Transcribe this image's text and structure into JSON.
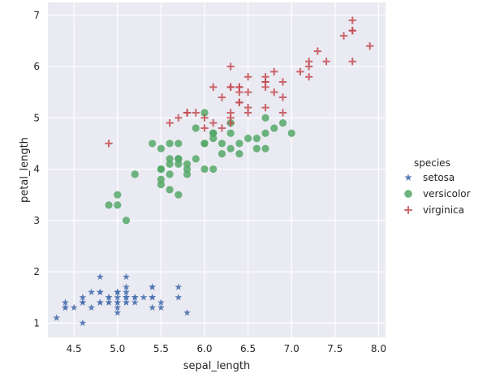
{
  "chart_data": {
    "type": "scatter",
    "xlabel": "sepal_length",
    "ylabel": "petal_length",
    "xlim": [
      4.2,
      8.08
    ],
    "ylim": [
      0.72,
      7.25
    ],
    "xticks": [
      4.5,
      5.0,
      5.5,
      6.0,
      6.5,
      7.0,
      7.5,
      8.0
    ],
    "yticks": [
      1,
      2,
      3,
      4,
      5,
      6,
      7
    ],
    "grid": true,
    "legend": {
      "title": "species",
      "placement": "right"
    },
    "series": [
      {
        "name": "setosa",
        "marker": "star",
        "color": "#4c72b0",
        "points": [
          [
            5.1,
            1.4
          ],
          [
            4.9,
            1.4
          ],
          [
            4.7,
            1.3
          ],
          [
            4.6,
            1.5
          ],
          [
            5.0,
            1.4
          ],
          [
            5.4,
            1.7
          ],
          [
            4.6,
            1.4
          ],
          [
            5.0,
            1.5
          ],
          [
            4.4,
            1.4
          ],
          [
            4.9,
            1.5
          ],
          [
            5.4,
            1.5
          ],
          [
            4.8,
            1.6
          ],
          [
            4.8,
            1.4
          ],
          [
            4.3,
            1.1
          ],
          [
            5.8,
            1.2
          ],
          [
            5.7,
            1.5
          ],
          [
            5.4,
            1.3
          ],
          [
            5.1,
            1.4
          ],
          [
            5.7,
            1.7
          ],
          [
            5.1,
            1.5
          ],
          [
            5.4,
            1.7
          ],
          [
            5.1,
            1.5
          ],
          [
            4.6,
            1.0
          ],
          [
            5.1,
            1.7
          ],
          [
            4.8,
            1.9
          ],
          [
            5.0,
            1.6
          ],
          [
            5.0,
            1.6
          ],
          [
            5.2,
            1.5
          ],
          [
            5.2,
            1.4
          ],
          [
            4.7,
            1.6
          ],
          [
            4.8,
            1.6
          ],
          [
            5.4,
            1.5
          ],
          [
            5.2,
            1.5
          ],
          [
            5.5,
            1.4
          ],
          [
            4.9,
            1.5
          ],
          [
            5.0,
            1.2
          ],
          [
            5.5,
            1.3
          ],
          [
            4.9,
            1.4
          ],
          [
            4.4,
            1.3
          ],
          [
            5.1,
            1.5
          ],
          [
            5.0,
            1.3
          ],
          [
            4.5,
            1.3
          ],
          [
            4.4,
            1.3
          ],
          [
            5.0,
            1.6
          ],
          [
            5.1,
            1.9
          ],
          [
            4.8,
            1.4
          ],
          [
            5.1,
            1.6
          ],
          [
            4.6,
            1.4
          ],
          [
            5.3,
            1.5
          ],
          [
            5.0,
            1.4
          ]
        ]
      },
      {
        "name": "versicolor",
        "marker": "circle",
        "color": "#55a868",
        "points": [
          [
            7.0,
            4.7
          ],
          [
            6.4,
            4.5
          ],
          [
            6.9,
            4.9
          ],
          [
            5.5,
            4.0
          ],
          [
            6.5,
            4.6
          ],
          [
            5.7,
            4.5
          ],
          [
            6.3,
            4.7
          ],
          [
            4.9,
            3.3
          ],
          [
            6.6,
            4.6
          ],
          [
            5.2,
            3.9
          ],
          [
            5.0,
            3.5
          ],
          [
            5.9,
            4.2
          ],
          [
            6.0,
            4.0
          ],
          [
            6.1,
            4.7
          ],
          [
            5.6,
            3.6
          ],
          [
            6.7,
            4.4
          ],
          [
            5.6,
            4.5
          ],
          [
            5.8,
            4.1
          ],
          [
            6.2,
            4.5
          ],
          [
            5.6,
            3.9
          ],
          [
            5.9,
            4.8
          ],
          [
            6.1,
            4.0
          ],
          [
            6.3,
            4.9
          ],
          [
            6.1,
            4.7
          ],
          [
            6.4,
            4.3
          ],
          [
            6.6,
            4.4
          ],
          [
            6.8,
            4.8
          ],
          [
            6.7,
            5.0
          ],
          [
            6.0,
            4.5
          ],
          [
            5.7,
            3.5
          ],
          [
            5.5,
            3.8
          ],
          [
            5.5,
            3.7
          ],
          [
            5.8,
            3.9
          ],
          [
            6.0,
            5.1
          ],
          [
            5.4,
            4.5
          ],
          [
            6.0,
            4.5
          ],
          [
            6.7,
            4.7
          ],
          [
            6.3,
            4.4
          ],
          [
            5.6,
            4.1
          ],
          [
            5.5,
            4.0
          ],
          [
            5.5,
            4.4
          ],
          [
            6.1,
            4.6
          ],
          [
            5.8,
            4.0
          ],
          [
            5.0,
            3.3
          ],
          [
            5.6,
            4.2
          ],
          [
            5.7,
            4.2
          ],
          [
            5.7,
            4.2
          ],
          [
            6.2,
            4.3
          ],
          [
            5.1,
            3.0
          ],
          [
            5.7,
            4.1
          ]
        ]
      },
      {
        "name": "virginica",
        "marker": "plus",
        "color": "#c44e52",
        "points": [
          [
            6.3,
            6.0
          ],
          [
            5.8,
            5.1
          ],
          [
            7.1,
            5.9
          ],
          [
            6.3,
            5.6
          ],
          [
            6.5,
            5.8
          ],
          [
            7.6,
            6.6
          ],
          [
            4.9,
            4.5
          ],
          [
            7.3,
            6.3
          ],
          [
            6.7,
            5.8
          ],
          [
            7.2,
            6.1
          ],
          [
            6.5,
            5.1
          ],
          [
            6.4,
            5.3
          ],
          [
            6.8,
            5.5
          ],
          [
            5.7,
            5.0
          ],
          [
            5.8,
            5.1
          ],
          [
            6.4,
            5.3
          ],
          [
            6.5,
            5.5
          ],
          [
            7.7,
            6.7
          ],
          [
            7.7,
            6.9
          ],
          [
            6.0,
            5.0
          ],
          [
            6.9,
            5.7
          ],
          [
            5.6,
            4.9
          ],
          [
            7.7,
            6.7
          ],
          [
            6.3,
            4.9
          ],
          [
            6.7,
            5.7
          ],
          [
            7.2,
            6.0
          ],
          [
            6.2,
            4.8
          ],
          [
            6.1,
            4.9
          ],
          [
            6.4,
            5.6
          ],
          [
            7.2,
            5.8
          ],
          [
            7.4,
            6.1
          ],
          [
            7.9,
            6.4
          ],
          [
            6.4,
            5.6
          ],
          [
            6.3,
            5.1
          ],
          [
            6.1,
            5.6
          ],
          [
            7.7,
            6.1
          ],
          [
            6.3,
            5.6
          ],
          [
            6.4,
            5.5
          ],
          [
            6.0,
            4.8
          ],
          [
            6.9,
            5.4
          ],
          [
            6.7,
            5.6
          ],
          [
            6.9,
            5.1
          ],
          [
            5.8,
            5.1
          ],
          [
            6.8,
            5.9
          ],
          [
            6.7,
            5.7
          ],
          [
            6.7,
            5.2
          ],
          [
            6.3,
            5.0
          ],
          [
            6.5,
            5.2
          ],
          [
            6.2,
            5.4
          ],
          [
            5.9,
            5.1
          ]
        ]
      }
    ]
  },
  "colors": {
    "plot_background": "#eaeaf2",
    "grid": "#ffffff",
    "text": "#262626"
  }
}
